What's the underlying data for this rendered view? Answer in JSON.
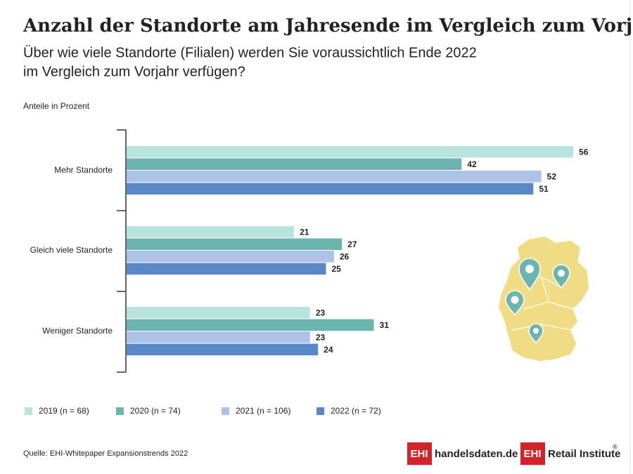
{
  "chart_data": {
    "type": "bar",
    "orientation": "horizontal",
    "title": "Anzahl der Standorte am Jahresende im Vergleich zum Vorjahr",
    "subtitle": [
      "Über wie viele Standorte (Filialen) werden Sie voraussichtlich Ende 2022",
      "im Vergleich zum Vorjahr verfügen?"
    ],
    "axis_label": "Anteile in Prozent",
    "categories": [
      "Mehr Standorte",
      "Gleich viele Standorte",
      "Weniger Standorte"
    ],
    "series": [
      {
        "name": "2019 (n = 68)",
        "color": "#b9e3df",
        "values": [
          56,
          21,
          23
        ]
      },
      {
        "name": "2020 (n = 74)",
        "color": "#6bb5ae",
        "values": [
          42,
          27,
          31
        ]
      },
      {
        "name": "2021 (n = 106)",
        "color": "#adc2e6",
        "values": [
          52,
          26,
          23
        ]
      },
      {
        "name": "2022 (n = 72)",
        "color": "#5a87c8",
        "values": [
          51,
          25,
          24
        ]
      }
    ],
    "source": "Quelle: EHI-Whitepaper Expansionstrends 2022"
  },
  "logos": [
    {
      "badge": "EHI",
      "text": "handelsdaten.de"
    },
    {
      "badge": "EHI",
      "text": "Retail Institute",
      "mark": "®"
    }
  ]
}
